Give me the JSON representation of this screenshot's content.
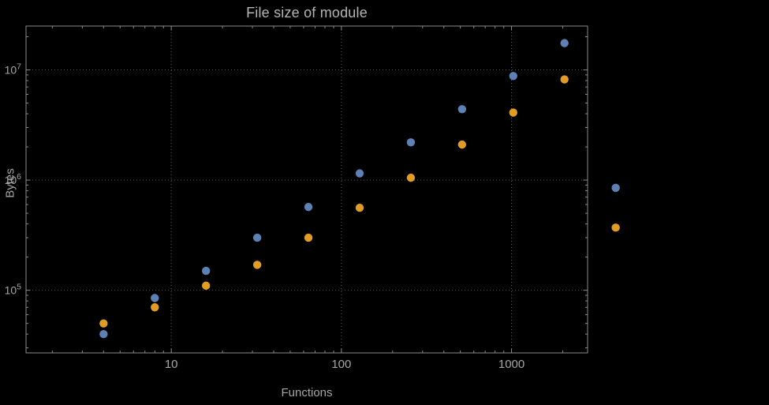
{
  "title": "File size of module",
  "xlabel": "Functions",
  "ylabel": "Bytes",
  "colors": {
    "background": "#000000",
    "frame": "#8c8c8c",
    "grid": "#5c5c5c",
    "text": "#a6a6a6",
    "series1": "#5e81b5",
    "series2": "#e09c24"
  },
  "chart_data": {
    "type": "scatter",
    "title": "File size of module",
    "xlabel": "Functions",
    "ylabel": "Bytes",
    "x_scale": "log",
    "y_scale": "log",
    "xlim": [
      1.4,
      2800
    ],
    "ylim": [
      27000,
      25000000
    ],
    "grid": true,
    "legend": "none",
    "x": [
      4,
      8,
      16,
      32,
      64,
      128,
      256,
      512,
      1024,
      2048,
      4096
    ],
    "series": [
      {
        "name": "series-blue",
        "color": "#5e81b5",
        "values": [
          40000,
          85000,
          150000,
          300000,
          570000,
          1150000,
          2200000,
          4400000,
          8800000,
          17500000,
          850000
        ]
      },
      {
        "name": "series-orange",
        "color": "#e09c24",
        "values": [
          50000,
          70000,
          110000,
          170000,
          300000,
          560000,
          1050000,
          2100000,
          4100000,
          8200000,
          370000
        ]
      }
    ],
    "x_ticks": [
      {
        "value": 10,
        "label": "10"
      },
      {
        "value": 100,
        "label": "100"
      },
      {
        "value": 1000,
        "label": "1000"
      }
    ],
    "y_ticks": [
      {
        "value": 100000,
        "mantissa": "10",
        "exponent": "5"
      },
      {
        "value": 1000000,
        "mantissa": "10",
        "exponent": "6"
      },
      {
        "value": 10000000,
        "mantissa": "10",
        "exponent": "7"
      }
    ]
  }
}
